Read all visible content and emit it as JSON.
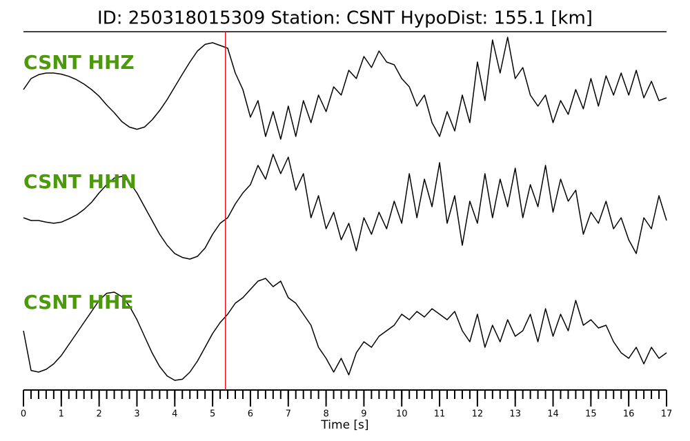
{
  "chart_data": {
    "type": "line",
    "title": "ID: 250318015309   Station: CSNT   HypoDist:   155.1 [km]",
    "xlabel": "Time [s]",
    "xlim": [
      0,
      17
    ],
    "xticks": [
      0,
      1,
      2,
      3,
      4,
      5,
      6,
      7,
      8,
      9,
      10,
      11,
      12,
      13,
      14,
      15,
      16,
      17
    ],
    "minor_tick_interval": 0.2,
    "ylim": [
      -1,
      1
    ],
    "pick_time": 5.34,
    "pick_color": "#e8141a",
    "label_color": "#4c9a0c",
    "x": [
      0,
      0.2,
      0.4,
      0.6,
      0.8,
      1,
      1.2,
      1.4,
      1.6,
      1.8,
      2,
      2.2,
      2.4,
      2.6,
      2.8,
      3,
      3.2,
      3.4,
      3.6,
      3.8,
      4,
      4.2,
      4.4,
      4.6,
      4.8,
      5,
      5.2,
      5.4,
      5.6,
      5.8,
      6,
      6.2,
      6.4,
      6.6,
      6.8,
      7,
      7.2,
      7.4,
      7.6,
      7.8,
      8,
      8.2,
      8.4,
      8.6,
      8.8,
      9,
      9.2,
      9.4,
      9.6,
      9.8,
      10,
      10.2,
      10.4,
      10.6,
      10.8,
      11,
      11.2,
      11.4,
      11.6,
      11.8,
      12,
      12.2,
      12.4,
      12.6,
      12.8,
      13,
      13.2,
      13.4,
      13.6,
      13.8,
      14,
      14.2,
      14.4,
      14.6,
      14.8,
      15,
      15.2,
      15.4,
      15.6,
      15.8,
      16,
      16.2,
      16.4,
      16.6,
      16.8,
      17
    ],
    "series": [
      {
        "name": "CSNT HHZ",
        "color": "#000000",
        "values": [
          0,
          0.2,
          0.27,
          0.3,
          0.3,
          0.28,
          0.24,
          0.18,
          0.1,
          0,
          -0.12,
          -0.28,
          -0.42,
          -0.58,
          -0.68,
          -0.72,
          -0.68,
          -0.55,
          -0.38,
          -0.18,
          0.05,
          0.28,
          0.5,
          0.7,
          0.82,
          0.85,
          0.8,
          0.75,
          0.3,
          0,
          -0.5,
          -0.2,
          -0.85,
          -0.4,
          -0.9,
          -0.3,
          -0.85,
          -0.2,
          -0.6,
          -0.1,
          -0.4,
          0.05,
          -0.1,
          0.35,
          0.2,
          0.6,
          0.4,
          0.7,
          0.5,
          0.45,
          0.2,
          0.05,
          -0.3,
          -0.1,
          -0.6,
          -0.85,
          -0.4,
          -0.75,
          -0.1,
          -0.6,
          0.5,
          -0.2,
          0.9,
          0.3,
          0.95,
          0.2,
          0.4,
          -0.1,
          -0.3,
          -0.1,
          -0.6,
          -0.2,
          -0.45,
          0,
          -0.35,
          0.2,
          -0.3,
          0.25,
          -0.1,
          0.3,
          -0.1,
          0.35,
          -0.15,
          0.15,
          -0.2,
          -0.15
        ]
      },
      {
        "name": "CSNT HHN",
        "color": "#000000",
        "values": [
          -0.2,
          -0.25,
          -0.25,
          -0.28,
          -0.3,
          -0.28,
          -0.22,
          -0.15,
          -0.05,
          0.08,
          0.25,
          0.4,
          0.52,
          0.55,
          0.45,
          0.25,
          0,
          -0.25,
          -0.5,
          -0.7,
          -0.85,
          -0.92,
          -0.95,
          -0.9,
          -0.75,
          -0.5,
          -0.3,
          -0.2,
          0.05,
          0.25,
          0.4,
          0.75,
          0.5,
          0.95,
          0.6,
          0.9,
          0.3,
          0.6,
          -0.2,
          0.2,
          -0.4,
          -0.1,
          -0.6,
          -0.3,
          -0.8,
          -0.2,
          -0.5,
          -0.1,
          -0.4,
          0.1,
          -0.3,
          0.6,
          -0.2,
          0.5,
          0,
          0.8,
          -0.3,
          0.2,
          -0.7,
          0.1,
          -0.3,
          0.6,
          -0.2,
          0.5,
          0,
          0.7,
          -0.2,
          0.4,
          0,
          0.75,
          -0.1,
          0.5,
          0.1,
          0.3,
          -0.5,
          -0.1,
          -0.3,
          0.1,
          -0.4,
          -0.2,
          -0.6,
          -0.85,
          -0.2,
          -0.4,
          0.2,
          -0.25
        ]
      },
      {
        "name": "CSNT HHE",
        "color": "#000000",
        "values": [
          0,
          -0.72,
          -0.75,
          -0.7,
          -0.6,
          -0.45,
          -0.25,
          -0.05,
          0.15,
          0.35,
          0.55,
          0.68,
          0.7,
          0.62,
          0.45,
          0.2,
          -0.1,
          -0.4,
          -0.65,
          -0.82,
          -0.9,
          -0.88,
          -0.75,
          -0.55,
          -0.3,
          -0.05,
          0.15,
          0.3,
          0.5,
          0.6,
          0.75,
          0.9,
          0.95,
          0.8,
          0.9,
          0.6,
          0.5,
          0.3,
          0.1,
          -0.3,
          -0.5,
          -0.75,
          -0.5,
          -0.8,
          -0.4,
          -0.2,
          -0.3,
          -0.1,
          0,
          0.1,
          0.3,
          0.2,
          0.35,
          0.25,
          0.4,
          0.3,
          0.2,
          0.35,
          0,
          -0.2,
          0.3,
          -0.3,
          0.1,
          -0.2,
          0.2,
          -0.1,
          0,
          0.3,
          -0.2,
          0.4,
          -0.1,
          0.3,
          0,
          0.55,
          0.1,
          0.2,
          0.05,
          0.1,
          -0.2,
          -0.4,
          -0.5,
          -0.3,
          -0.6,
          -0.3,
          -0.5,
          -0.4
        ]
      }
    ]
  }
}
